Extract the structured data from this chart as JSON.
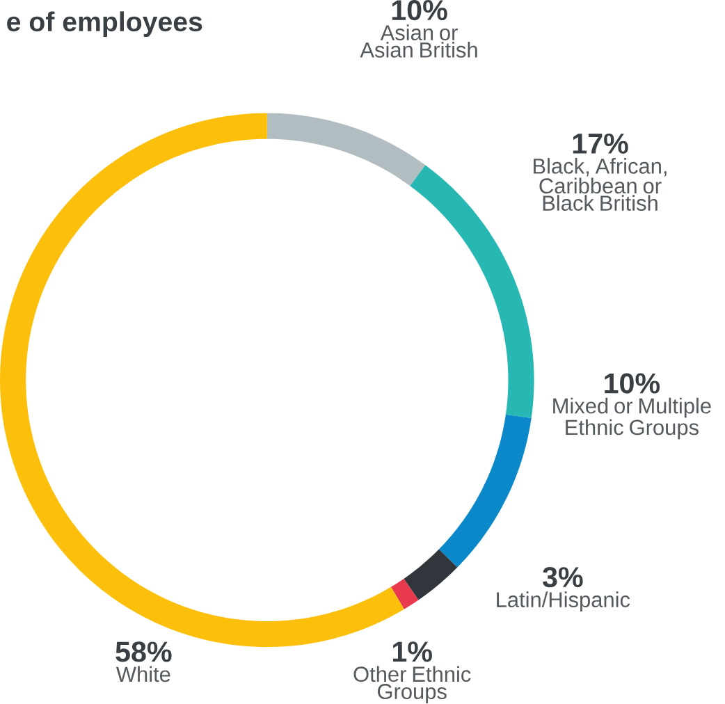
{
  "chart_data": {
    "type": "donut",
    "title": "e of employees",
    "categories": [
      "Asian or Asian British",
      "Black, African, Caribbean or Black British",
      "Mixed or Multiple Ethnic Groups",
      "Latin/Hispanic",
      "Other Ethnic Groups",
      "White"
    ],
    "values": [
      10,
      17,
      10,
      3,
      1,
      58
    ],
    "value_labels": [
      "10%",
      "17%",
      "10%",
      "3%",
      "1%",
      "58%"
    ],
    "colors": [
      "#b1bdc0",
      "#27b8b4",
      "#0a88c9",
      "#30363c",
      "#e8394e",
      "#fbbf0c"
    ]
  }
}
